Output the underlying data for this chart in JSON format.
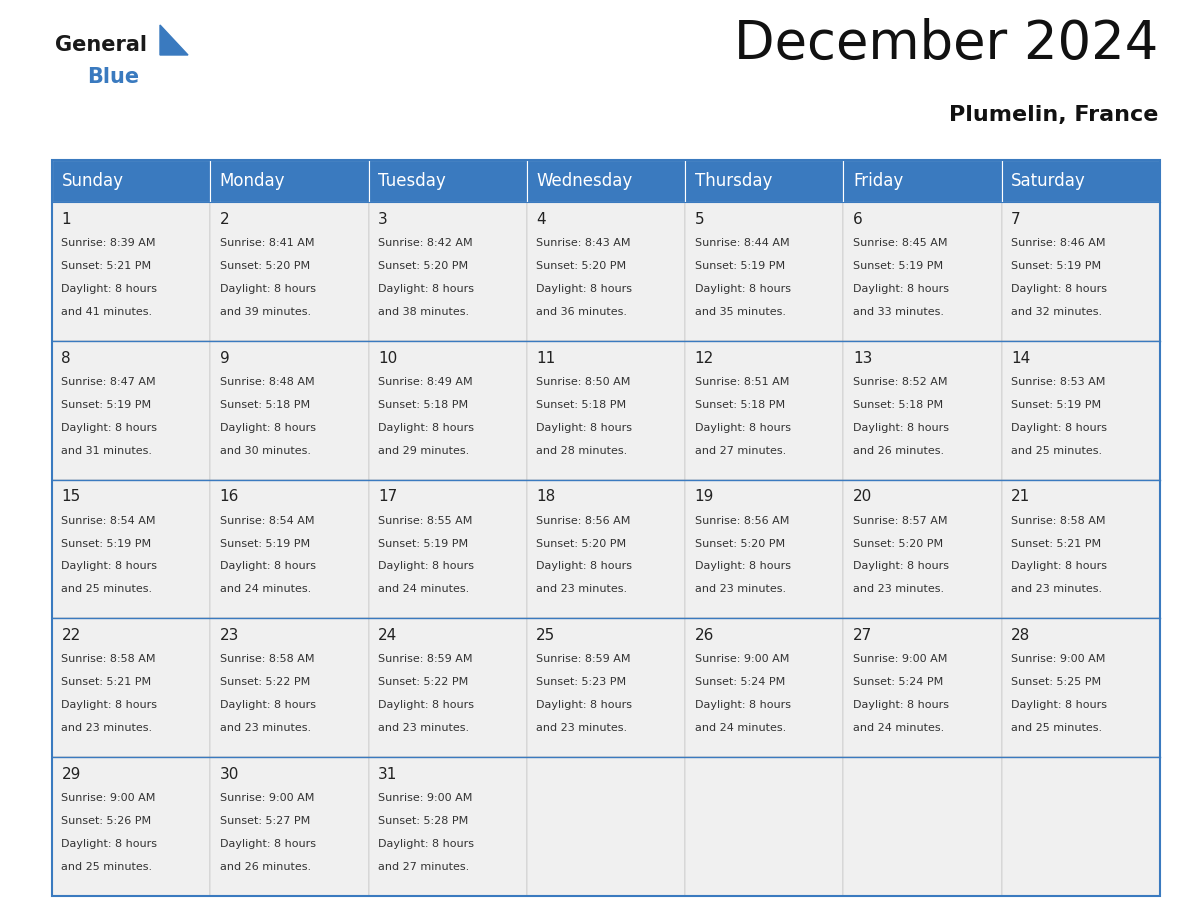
{
  "title": "December 2024",
  "subtitle": "Plumelin, France",
  "header_color": "#3a7abf",
  "header_text_color": "#ffffff",
  "background_color": "#ffffff",
  "cell_bg_color": "#f0f0f0",
  "title_fontsize": 38,
  "subtitle_fontsize": 16,
  "day_header_fontsize": 12,
  "day_num_fontsize": 11,
  "cell_text_fontsize": 8,
  "days_of_week": [
    "Sunday",
    "Monday",
    "Tuesday",
    "Wednesday",
    "Thursday",
    "Friday",
    "Saturday"
  ],
  "weeks": [
    [
      {
        "day": 1,
        "sunrise": "8:39 AM",
        "sunset": "5:21 PM",
        "daylight_line1": "Daylight: 8 hours",
        "daylight_line2": "and 41 minutes."
      },
      {
        "day": 2,
        "sunrise": "8:41 AM",
        "sunset": "5:20 PM",
        "daylight_line1": "Daylight: 8 hours",
        "daylight_line2": "and 39 minutes."
      },
      {
        "day": 3,
        "sunrise": "8:42 AM",
        "sunset": "5:20 PM",
        "daylight_line1": "Daylight: 8 hours",
        "daylight_line2": "and 38 minutes."
      },
      {
        "day": 4,
        "sunrise": "8:43 AM",
        "sunset": "5:20 PM",
        "daylight_line1": "Daylight: 8 hours",
        "daylight_line2": "and 36 minutes."
      },
      {
        "day": 5,
        "sunrise": "8:44 AM",
        "sunset": "5:19 PM",
        "daylight_line1": "Daylight: 8 hours",
        "daylight_line2": "and 35 minutes."
      },
      {
        "day": 6,
        "sunrise": "8:45 AM",
        "sunset": "5:19 PM",
        "daylight_line1": "Daylight: 8 hours",
        "daylight_line2": "and 33 minutes."
      },
      {
        "day": 7,
        "sunrise": "8:46 AM",
        "sunset": "5:19 PM",
        "daylight_line1": "Daylight: 8 hours",
        "daylight_line2": "and 32 minutes."
      }
    ],
    [
      {
        "day": 8,
        "sunrise": "8:47 AM",
        "sunset": "5:19 PM",
        "daylight_line1": "Daylight: 8 hours",
        "daylight_line2": "and 31 minutes."
      },
      {
        "day": 9,
        "sunrise": "8:48 AM",
        "sunset": "5:18 PM",
        "daylight_line1": "Daylight: 8 hours",
        "daylight_line2": "and 30 minutes."
      },
      {
        "day": 10,
        "sunrise": "8:49 AM",
        "sunset": "5:18 PM",
        "daylight_line1": "Daylight: 8 hours",
        "daylight_line2": "and 29 minutes."
      },
      {
        "day": 11,
        "sunrise": "8:50 AM",
        "sunset": "5:18 PM",
        "daylight_line1": "Daylight: 8 hours",
        "daylight_line2": "and 28 minutes."
      },
      {
        "day": 12,
        "sunrise": "8:51 AM",
        "sunset": "5:18 PM",
        "daylight_line1": "Daylight: 8 hours",
        "daylight_line2": "and 27 minutes."
      },
      {
        "day": 13,
        "sunrise": "8:52 AM",
        "sunset": "5:18 PM",
        "daylight_line1": "Daylight: 8 hours",
        "daylight_line2": "and 26 minutes."
      },
      {
        "day": 14,
        "sunrise": "8:53 AM",
        "sunset": "5:19 PM",
        "daylight_line1": "Daylight: 8 hours",
        "daylight_line2": "and 25 minutes."
      }
    ],
    [
      {
        "day": 15,
        "sunrise": "8:54 AM",
        "sunset": "5:19 PM",
        "daylight_line1": "Daylight: 8 hours",
        "daylight_line2": "and 25 minutes."
      },
      {
        "day": 16,
        "sunrise": "8:54 AM",
        "sunset": "5:19 PM",
        "daylight_line1": "Daylight: 8 hours",
        "daylight_line2": "and 24 minutes."
      },
      {
        "day": 17,
        "sunrise": "8:55 AM",
        "sunset": "5:19 PM",
        "daylight_line1": "Daylight: 8 hours",
        "daylight_line2": "and 24 minutes."
      },
      {
        "day": 18,
        "sunrise": "8:56 AM",
        "sunset": "5:20 PM",
        "daylight_line1": "Daylight: 8 hours",
        "daylight_line2": "and 23 minutes."
      },
      {
        "day": 19,
        "sunrise": "8:56 AM",
        "sunset": "5:20 PM",
        "daylight_line1": "Daylight: 8 hours",
        "daylight_line2": "and 23 minutes."
      },
      {
        "day": 20,
        "sunrise": "8:57 AM",
        "sunset": "5:20 PM",
        "daylight_line1": "Daylight: 8 hours",
        "daylight_line2": "and 23 minutes."
      },
      {
        "day": 21,
        "sunrise": "8:58 AM",
        "sunset": "5:21 PM",
        "daylight_line1": "Daylight: 8 hours",
        "daylight_line2": "and 23 minutes."
      }
    ],
    [
      {
        "day": 22,
        "sunrise": "8:58 AM",
        "sunset": "5:21 PM",
        "daylight_line1": "Daylight: 8 hours",
        "daylight_line2": "and 23 minutes."
      },
      {
        "day": 23,
        "sunrise": "8:58 AM",
        "sunset": "5:22 PM",
        "daylight_line1": "Daylight: 8 hours",
        "daylight_line2": "and 23 minutes."
      },
      {
        "day": 24,
        "sunrise": "8:59 AM",
        "sunset": "5:22 PM",
        "daylight_line1": "Daylight: 8 hours",
        "daylight_line2": "and 23 minutes."
      },
      {
        "day": 25,
        "sunrise": "8:59 AM",
        "sunset": "5:23 PM",
        "daylight_line1": "Daylight: 8 hours",
        "daylight_line2": "and 23 minutes."
      },
      {
        "day": 26,
        "sunrise": "9:00 AM",
        "sunset": "5:24 PM",
        "daylight_line1": "Daylight: 8 hours",
        "daylight_line2": "and 24 minutes."
      },
      {
        "day": 27,
        "sunrise": "9:00 AM",
        "sunset": "5:24 PM",
        "daylight_line1": "Daylight: 8 hours",
        "daylight_line2": "and 24 minutes."
      },
      {
        "day": 28,
        "sunrise": "9:00 AM",
        "sunset": "5:25 PM",
        "daylight_line1": "Daylight: 8 hours",
        "daylight_line2": "and 25 minutes."
      }
    ],
    [
      {
        "day": 29,
        "sunrise": "9:00 AM",
        "sunset": "5:26 PM",
        "daylight_line1": "Daylight: 8 hours",
        "daylight_line2": "and 25 minutes."
      },
      {
        "day": 30,
        "sunrise": "9:00 AM",
        "sunset": "5:27 PM",
        "daylight_line1": "Daylight: 8 hours",
        "daylight_line2": "and 26 minutes."
      },
      {
        "day": 31,
        "sunrise": "9:00 AM",
        "sunset": "5:28 PM",
        "daylight_line1": "Daylight: 8 hours",
        "daylight_line2": "and 27 minutes."
      },
      null,
      null,
      null,
      null
    ]
  ]
}
